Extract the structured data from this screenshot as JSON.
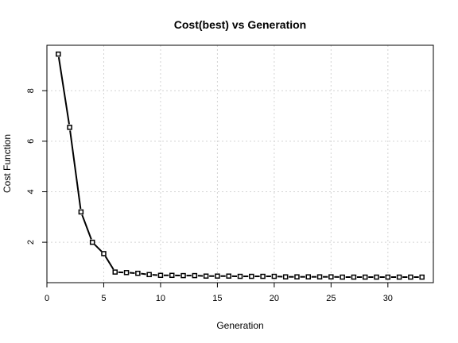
{
  "chart_data": {
    "type": "line",
    "title": "Cost(best) vs Generation",
    "xlabel": "Generation",
    "ylabel": "Cost Function",
    "xlim": [
      0,
      34
    ],
    "ylim": [
      0.4,
      9.8
    ],
    "xticks": [
      0,
      5,
      10,
      15,
      20,
      25,
      30
    ],
    "yticks": [
      2,
      4,
      6,
      8
    ],
    "grid": true,
    "series": [
      {
        "x": [
          1,
          2,
          3,
          4,
          5,
          6,
          7,
          8,
          9,
          10,
          11,
          12,
          13,
          14,
          15,
          16,
          17,
          18,
          19,
          20,
          21,
          22,
          23,
          24,
          25,
          26,
          27,
          28,
          29,
          30,
          31,
          32,
          33
        ],
        "y": [
          9.45,
          6.55,
          3.2,
          2.0,
          1.55,
          0.82,
          0.8,
          0.77,
          0.72,
          0.69,
          0.69,
          0.68,
          0.68,
          0.66,
          0.66,
          0.66,
          0.65,
          0.65,
          0.65,
          0.65,
          0.63,
          0.63,
          0.63,
          0.63,
          0.63,
          0.62,
          0.62,
          0.62,
          0.62,
          0.62,
          0.62,
          0.62,
          0.62
        ]
      }
    ]
  }
}
